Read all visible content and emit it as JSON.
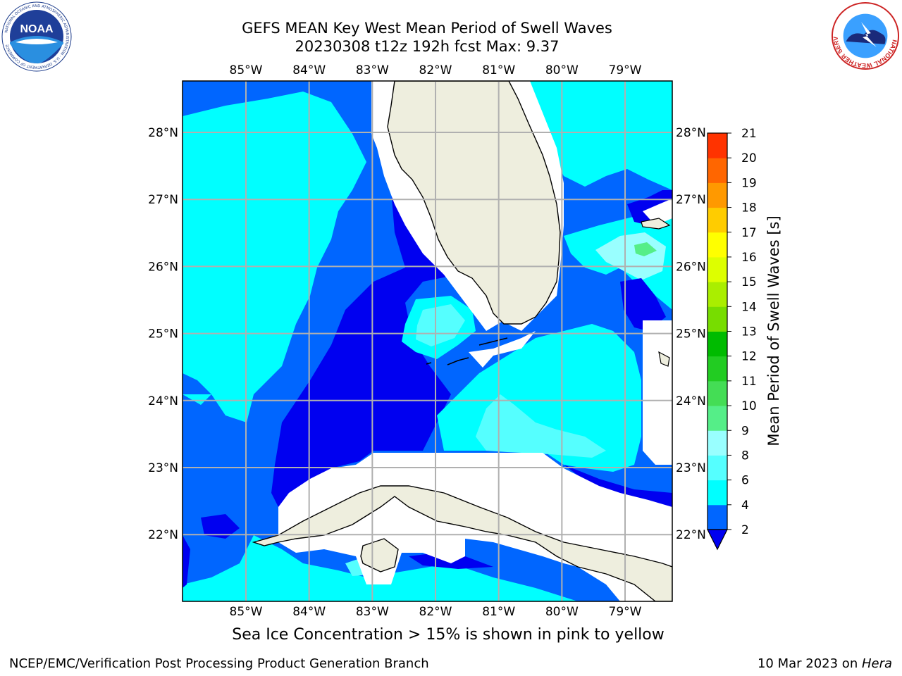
{
  "title": {
    "line1": "GEFS MEAN Key West Mean Period of Swell Waves",
    "line2": "20230308 t12z 192h fcst   Max: 9.37"
  },
  "map": {
    "lon_labels": [
      "85°W",
      "84°W",
      "83°W",
      "82°W",
      "81°W",
      "80°W",
      "79°W"
    ],
    "lat_labels": [
      "28°N",
      "27°N",
      "26°N",
      "25°N",
      "24°N",
      "23°N",
      "22°N"
    ],
    "lon_values": [
      -85,
      -84,
      -83,
      -82,
      -81,
      -80,
      -79
    ],
    "lat_values": [
      28,
      27,
      26,
      25,
      24,
      23,
      22
    ],
    "colors": {
      "land": "#eeeede",
      "gridline": "#b0b0b0",
      "coastline": "#000000",
      "band_2_4": "#0000f0",
      "band_4_6": "#0066ff",
      "band_6_8": "#00ffff",
      "band_8_10": "#55ffff",
      "band_10_12": "#55ff88",
      "missing": "#ffffff"
    }
  },
  "colorbar": {
    "title": "Mean Period of Swell Waves [s]",
    "ticks": [
      "2",
      "4",
      "6",
      "8",
      "9",
      "10",
      "11",
      "12",
      "13",
      "14",
      "15",
      "16",
      "17",
      "18",
      "19",
      "20",
      "21"
    ],
    "colors": [
      "#0000f0",
      "#0066ff",
      "#00ffff",
      "#55ffff",
      "#99ffff",
      "#55ee88",
      "#44dd55",
      "#22cc22",
      "#00bb00",
      "#77dd00",
      "#aaee00",
      "#ddff00",
      "#ffff00",
      "#ffcc00",
      "#ff9900",
      "#ff6600",
      "#ff3300",
      "#ff0000"
    ]
  },
  "subtitle": "Sea Ice Concentration > 15% is shown in pink to yellow",
  "footer": {
    "left": "NCEP/EMC/Verification Post Processing Product Generation Branch",
    "right_date": "10 Mar 2023 on ",
    "right_host": "Hera"
  },
  "logos": {
    "noaa_text": "NOAA",
    "noaa_ring": "NATIONAL OCEANIC AND ATMOSPHERIC ADMINISTRATION · U.S. DEPARTMENT OF COMMERCE",
    "nws_ring": "NATIONAL WEATHER SERVICE"
  }
}
